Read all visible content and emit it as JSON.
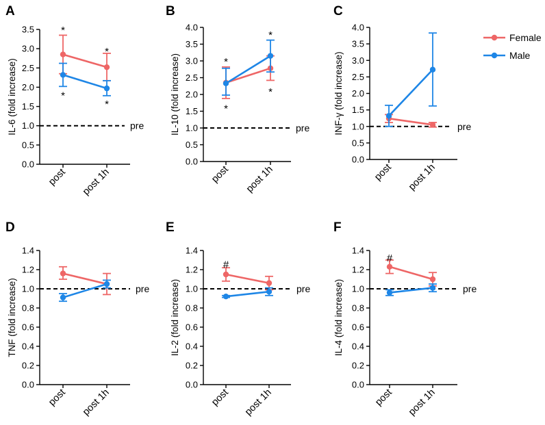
{
  "legend": [
    {
      "name": "Female",
      "color": "#EE6666"
    },
    {
      "name": "Male",
      "color": "#1E86E6"
    }
  ],
  "colors": {
    "female": "#EE6666",
    "male": "#1E86E6",
    "reference": "#000000"
  },
  "chart_data": [
    {
      "type": "line",
      "panel": "A",
      "ylabel": "IL-6 (fold increase)",
      "categories": [
        "post",
        "post 1h"
      ],
      "ylim": [
        0,
        3.5
      ],
      "yticks": [
        "0.0",
        "0.5",
        "1.0",
        "1.5",
        "2.0",
        "2.5",
        "3.0",
        "3.5"
      ],
      "reference": {
        "value": 1.0,
        "label": "pre"
      },
      "series": [
        {
          "name": "Female",
          "values": [
            2.85,
            2.52
          ],
          "err_low": [
            2.35,
            2.17
          ],
          "err_high": [
            3.35,
            2.88
          ]
        },
        {
          "name": "Male",
          "values": [
            2.32,
            1.97
          ],
          "err_low": [
            2.02,
            1.78
          ],
          "err_high": [
            2.62,
            2.17
          ]
        }
      ],
      "annotations": [
        {
          "text": "*",
          "category": 0,
          "y": 3.5
        },
        {
          "text": "*",
          "category": 0,
          "y": 1.8
        },
        {
          "text": "*",
          "category": 1,
          "y": 2.95
        },
        {
          "text": "*",
          "category": 1,
          "y": 1.58
        }
      ]
    },
    {
      "type": "line",
      "panel": "B",
      "ylabel": "IL-10 (fold increase)",
      "categories": [
        "post",
        "post 1h"
      ],
      "ylim": [
        0,
        4.0
      ],
      "yticks": [
        "0.0",
        "0.5",
        "1.0",
        "1.5",
        "2.0",
        "2.5",
        "3.0",
        "3.5",
        "4.0"
      ],
      "reference": {
        "value": 1.0,
        "label": "pre"
      },
      "series": [
        {
          "name": "Female",
          "values": [
            2.35,
            2.78
          ],
          "err_low": [
            1.88,
            2.42
          ],
          "err_high": [
            2.82,
            3.15
          ]
        },
        {
          "name": "Male",
          "values": [
            2.33,
            3.15
          ],
          "err_low": [
            1.98,
            2.67
          ],
          "err_high": [
            2.78,
            3.62
          ]
        }
      ],
      "annotations": [
        {
          "text": "*",
          "category": 0,
          "y": 3.0
        },
        {
          "text": "*",
          "category": 0,
          "y": 1.6
        },
        {
          "text": "*",
          "category": 1,
          "y": 3.8
        },
        {
          "text": "*",
          "category": 1,
          "y": 2.1
        }
      ]
    },
    {
      "type": "line",
      "panel": "C",
      "ylabel": "INF-γ (fold increase)",
      "categories": [
        "post",
        "post 1h"
      ],
      "ylim": [
        0,
        4.0
      ],
      "yticks": [
        "0.0",
        "0.5",
        "1.0",
        "1.5",
        "2.0",
        "2.5",
        "3.0",
        "3.5",
        "4.0"
      ],
      "reference": {
        "value": 1.0,
        "label": "pre"
      },
      "series": [
        {
          "name": "Female",
          "values": [
            1.24,
            1.05
          ],
          "err_low": [
            1.12,
            0.98
          ],
          "err_high": [
            1.36,
            1.12
          ]
        },
        {
          "name": "Male",
          "values": [
            1.32,
            2.72
          ],
          "err_low": [
            1.0,
            1.62
          ],
          "err_high": [
            1.64,
            3.83
          ]
        }
      ],
      "annotations": []
    },
    {
      "type": "line",
      "panel": "D",
      "ylabel": "TNF (fold increase)",
      "categories": [
        "post",
        "post 1h"
      ],
      "ylim": [
        0,
        1.4
      ],
      "yticks": [
        "0.0",
        "0.2",
        "0.4",
        "0.6",
        "0.8",
        "1.0",
        "1.2",
        "1.4"
      ],
      "reference": {
        "value": 1.0,
        "label": "pre"
      },
      "series": [
        {
          "name": "Female",
          "values": [
            1.16,
            1.05
          ],
          "err_low": [
            1.1,
            0.94
          ],
          "err_high": [
            1.23,
            1.16
          ]
        },
        {
          "name": "Male",
          "values": [
            0.91,
            1.05
          ],
          "err_low": [
            0.87,
            1.01
          ],
          "err_high": [
            0.95,
            1.09
          ]
        }
      ],
      "annotations": []
    },
    {
      "type": "line",
      "panel": "E",
      "ylabel": "IL-2 (fold increase)",
      "categories": [
        "post",
        "post 1h"
      ],
      "ylim": [
        0,
        1.4
      ],
      "yticks": [
        "0.0",
        "0.2",
        "0.4",
        "0.6",
        "0.8",
        "1.0",
        "1.2",
        "1.4"
      ],
      "reference": {
        "value": 1.0,
        "label": "pre"
      },
      "series": [
        {
          "name": "Female",
          "values": [
            1.15,
            1.06
          ],
          "err_low": [
            1.08,
            0.99
          ],
          "err_high": [
            1.22,
            1.13
          ]
        },
        {
          "name": "Male",
          "values": [
            0.92,
            0.97
          ],
          "err_low": [
            0.91,
            0.93
          ],
          "err_high": [
            0.93,
            1.01
          ]
        }
      ],
      "annotations": [
        {
          "text": "#",
          "category": 0,
          "y": 1.26
        }
      ]
    },
    {
      "type": "line",
      "panel": "F",
      "ylabel": "IL-4 (fold increase)",
      "categories": [
        "post",
        "post 1h"
      ],
      "ylim": [
        0,
        1.4
      ],
      "yticks": [
        "0.0",
        "0.2",
        "0.4",
        "0.6",
        "0.8",
        "1.0",
        "1.2",
        "1.4"
      ],
      "reference": {
        "value": 1.0,
        "label": "pre"
      },
      "series": [
        {
          "name": "Female",
          "values": [
            1.23,
            1.1
          ],
          "err_low": [
            1.16,
            1.03
          ],
          "err_high": [
            1.3,
            1.17
          ]
        },
        {
          "name": "Male",
          "values": [
            0.96,
            1.01
          ],
          "err_low": [
            0.93,
            0.97
          ],
          "err_high": [
            0.99,
            1.05
          ]
        }
      ],
      "annotations": [
        {
          "text": "#",
          "category": 0,
          "y": 1.33
        }
      ]
    }
  ]
}
